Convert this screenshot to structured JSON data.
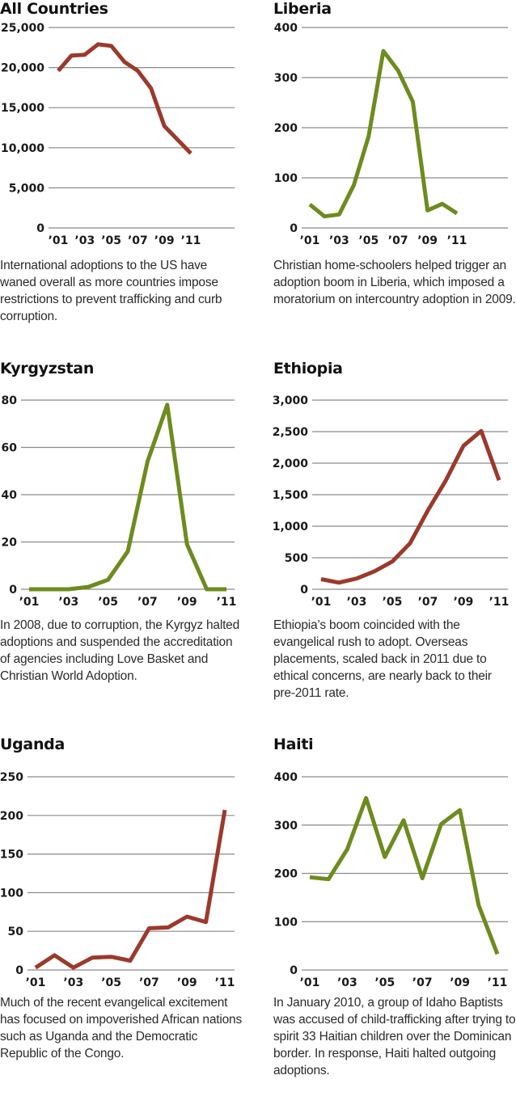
{
  "colors": {
    "decline": "#9b3a2c",
    "boom": "#6e8b1e"
  },
  "chart_data": [
    {
      "id": "all-countries",
      "type": "line",
      "title": "All Countries",
      "caption": "International adoptions to the US have waned overall as more countries impose restrictions to prevent trafficking and curb corruption.",
      "x": [
        "2001",
        "2002",
        "2003",
        "2004",
        "2005",
        "2006",
        "2007",
        "2008",
        "2009",
        "2010",
        "2011"
      ],
      "x_tick_labels": [
        "’01",
        "’03",
        "’05",
        "’07",
        "’09",
        "’11"
      ],
      "y_ticks": [
        0,
        5000,
        10000,
        15000,
        20000,
        25000
      ],
      "y_tick_labels": [
        "0",
        "5,000",
        "10,000",
        "15,000",
        "20,000",
        "25,000"
      ],
      "ylim": [
        0,
        25000
      ],
      "series": [
        {
          "name": "All Countries",
          "color": "#9b3a2c",
          "values": [
            19600,
            21500,
            21600,
            22900,
            22700,
            20700,
            19600,
            17400,
            12700,
            11000,
            9300
          ]
        }
      ],
      "grid": true
    },
    {
      "id": "liberia",
      "type": "line",
      "title": "Liberia",
      "caption": "Christian home-schoolers helped trigger an adoption boom in Liberia, which imposed a moratorium on intercountry adoption in 2009.",
      "x": [
        "2001",
        "2002",
        "2003",
        "2004",
        "2005",
        "2006",
        "2007",
        "2008",
        "2009",
        "2010",
        "2011"
      ],
      "x_tick_labels": [
        "’01",
        "’03",
        "’05",
        "’07",
        "’09",
        "’11"
      ],
      "y_ticks": [
        0,
        100,
        200,
        300,
        400
      ],
      "y_tick_labels": [
        "0",
        "100",
        "200",
        "300",
        "400"
      ],
      "ylim": [
        0,
        400
      ],
      "series": [
        {
          "name": "Liberia",
          "color": "#6e8b1e",
          "values": [
            47,
            23,
            27,
            86,
            183,
            353,
            314,
            252,
            35,
            48,
            29
          ]
        }
      ],
      "grid": true
    },
    {
      "id": "kyrgyzstan",
      "type": "line",
      "title": "Kyrgyzstan",
      "caption": "In 2008, due to corruption, the Kyrgyz halted adoptions and suspended the accreditation of agencies including Love Basket and Christian World Adoption.",
      "x": [
        "2001",
        "2002",
        "2003",
        "2004",
        "2005",
        "2006",
        "2007",
        "2008",
        "2009",
        "2010",
        "2011"
      ],
      "x_tick_labels": [
        "’01",
        "’03",
        "’05",
        "’07",
        "’09",
        "’11"
      ],
      "y_ticks": [
        0,
        20,
        40,
        60,
        80
      ],
      "y_tick_labels": [
        "0",
        "20",
        "40",
        "60",
        "80"
      ],
      "ylim": [
        0,
        80
      ],
      "series": [
        {
          "name": "Kyrgyzstan",
          "color": "#6e8b1e",
          "values": [
            0,
            0,
            0,
            1,
            4,
            16,
            54,
            78,
            19,
            0,
            0
          ]
        }
      ],
      "grid": true
    },
    {
      "id": "ethiopia",
      "type": "line",
      "title": "Ethiopia",
      "caption": "Ethiopia’s boom coincided with the evangelical rush to adopt. Overseas placements, scaled back in 2011 due to ethical concerns, are nearly back to their pre-2011 rate.",
      "x": [
        "2001",
        "2002",
        "2003",
        "2004",
        "2005",
        "2006",
        "2007",
        "2008",
        "2009",
        "2010",
        "2011"
      ],
      "x_tick_labels": [
        "’01",
        "’03",
        "’05",
        "’07",
        "’09",
        "’11"
      ],
      "y_ticks": [
        0,
        500,
        1000,
        1500,
        2000,
        2500,
        3000
      ],
      "y_tick_labels": [
        "0",
        "500",
        "1,000",
        "1,500",
        "2,000",
        "2,500",
        "3,000"
      ],
      "ylim": [
        0,
        3000
      ],
      "series": [
        {
          "name": "Ethiopia",
          "color": "#9b3a2c",
          "values": [
            160,
            105,
            170,
            285,
            440,
            730,
            1250,
            1720,
            2275,
            2510,
            1730
          ]
        }
      ],
      "grid": true
    },
    {
      "id": "uganda",
      "type": "line",
      "title": "Uganda",
      "caption": "Much of the recent evangelical excitement has focused on impoverished African nations such as Uganda and the Democratic Republic of the Congo.",
      "x": [
        "2001",
        "2002",
        "2003",
        "2004",
        "2005",
        "2006",
        "2007",
        "2008",
        "2009",
        "2010",
        "2011"
      ],
      "x_tick_labels": [
        "’01",
        "’03",
        "’05",
        "’07",
        "’09",
        "’11"
      ],
      "y_ticks": [
        0,
        50,
        100,
        150,
        200,
        250
      ],
      "y_tick_labels": [
        "0",
        "50",
        "100",
        "150",
        "200",
        "250"
      ],
      "ylim": [
        0,
        250
      ],
      "series": [
        {
          "name": "Uganda",
          "color": "#9b3a2c",
          "values": [
            3,
            19,
            3,
            16,
            17,
            12,
            54,
            55,
            69,
            62,
            207
          ]
        }
      ],
      "grid": true
    },
    {
      "id": "haiti",
      "type": "line",
      "title": "Haiti",
      "caption": "In January 2010, a group of Idaho Baptists was accused of child-trafficking after trying to spirit 33 Haitian children over the Dominican border. In response, Haiti halted outgoing adoptions.",
      "x": [
        "2001",
        "2002",
        "2003",
        "2004",
        "2005",
        "2006",
        "2007",
        "2008",
        "2009",
        "2010",
        "2011"
      ],
      "x_tick_labels": [
        "’01",
        "’03",
        "’05",
        "’07",
        "’09",
        "’11"
      ],
      "y_ticks": [
        0,
        100,
        200,
        300,
        400
      ],
      "y_tick_labels": [
        "0",
        "100",
        "200",
        "300",
        "400"
      ],
      "ylim": [
        0,
        400
      ],
      "series": [
        {
          "name": "Haiti",
          "color": "#6e8b1e",
          "values": [
            192,
            188,
            250,
            356,
            234,
            310,
            190,
            302,
            331,
            134,
            33
          ]
        }
      ],
      "grid": true
    }
  ]
}
